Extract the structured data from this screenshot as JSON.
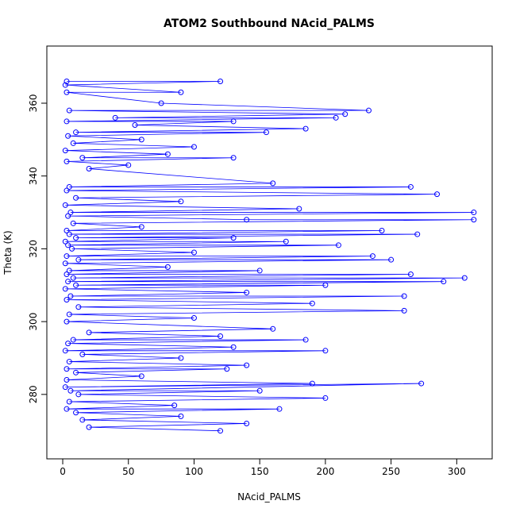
{
  "chart_data": {
    "type": "line-scatter",
    "title": "ATOM2 Southbound NAcid_PALMS",
    "xlabel": "NAcid_PALMS",
    "ylabel": "Theta (K)",
    "xlim": [
      -12.1,
      327
    ],
    "ylim": [
      262.3,
      375.7
    ],
    "xticks": [
      0,
      50,
      100,
      150,
      200,
      250,
      300
    ],
    "yticks": [
      280,
      300,
      320,
      340,
      360
    ],
    "color": "#0000ff",
    "x": [
      3,
      120,
      2,
      90,
      3,
      75,
      233,
      5,
      215,
      40,
      208,
      3,
      130,
      55,
      185,
      10,
      155,
      4,
      60,
      8,
      100,
      2,
      80,
      15,
      130,
      3,
      50,
      20,
      160,
      5,
      265,
      3,
      285,
      10,
      90,
      2,
      180,
      6,
      313,
      4,
      140,
      313,
      8,
      60,
      3,
      243,
      5,
      270,
      10,
      130,
      2,
      170,
      4,
      210,
      7,
      100,
      3,
      236,
      12,
      250,
      2,
      80,
      5,
      150,
      3,
      265,
      8,
      306,
      4,
      290,
      10,
      200,
      2,
      140,
      6,
      260,
      3,
      190,
      12,
      260,
      5,
      100,
      3,
      160,
      20,
      120,
      8,
      185,
      4,
      130,
      2,
      200,
      15,
      90,
      5,
      140,
      3,
      125,
      10,
      60,
      3,
      190,
      2,
      273,
      6,
      150,
      12,
      200,
      5,
      85,
      3,
      165,
      10,
      90,
      15,
      140,
      20,
      120
    ],
    "values": [
      366,
      366,
      365,
      363,
      363,
      360,
      358,
      358,
      357,
      356,
      356,
      355,
      355,
      354,
      353,
      352,
      352,
      351,
      350,
      349,
      348,
      347,
      346,
      345,
      345,
      344,
      343,
      342,
      338,
      337,
      337,
      336,
      335,
      334,
      333,
      332,
      331,
      330,
      330,
      329,
      328,
      328,
      327,
      326,
      325,
      325,
      324,
      324,
      323,
      323,
      322,
      322,
      321,
      321,
      320,
      319,
      318,
      318,
      317,
      317,
      316,
      315,
      314,
      314,
      313,
      313,
      312,
      312,
      311,
      311,
      310,
      310,
      309,
      308,
      307,
      307,
      306,
      305,
      304,
      303,
      302,
      301,
      300,
      298,
      297,
      296,
      295,
      295,
      294,
      293,
      292,
      292,
      291,
      290,
      289,
      288,
      287,
      287,
      286,
      285,
      284,
      283,
      282,
      283,
      281,
      281,
      280,
      279,
      278,
      277,
      276,
      276,
      275,
      274,
      273,
      272,
      271,
      270
    ]
  }
}
